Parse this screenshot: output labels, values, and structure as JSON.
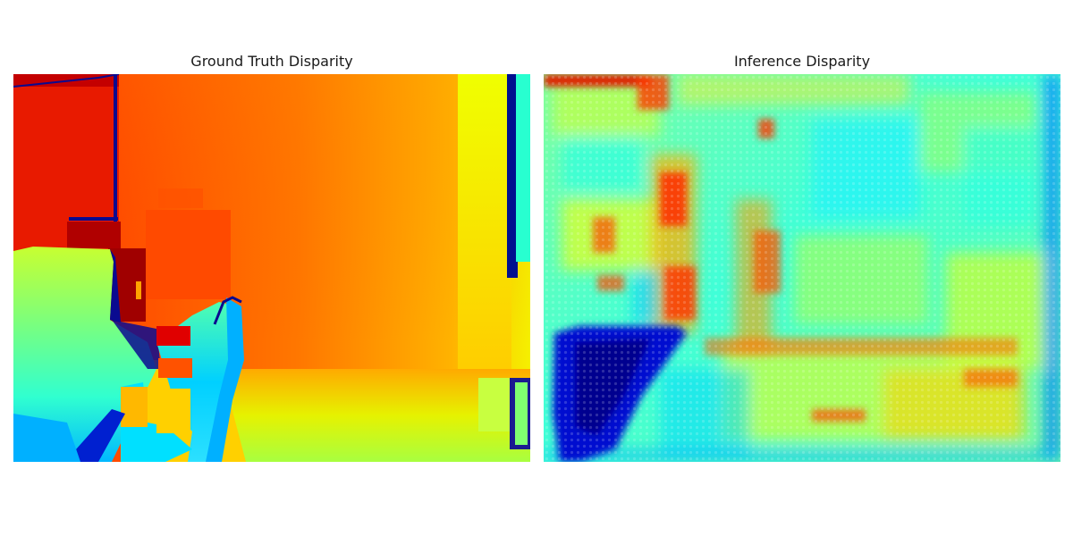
{
  "panels": [
    {
      "title": "Ground Truth Disparity",
      "colormap": "jet"
    },
    {
      "title": "Inference Disparity",
      "colormap": "jet"
    }
  ],
  "colors": {
    "jet_dark_red": "#7f0000",
    "jet_red": "#ff2a00",
    "jet_orange": "#ff8c00",
    "jet_yellow": "#f7f400",
    "jet_green": "#a8ff4f",
    "jet_cyan": "#38ffc4",
    "jet_light_blue": "#00c8ff",
    "jet_blue": "#0040ff",
    "jet_dark_blue": "#00008f"
  }
}
